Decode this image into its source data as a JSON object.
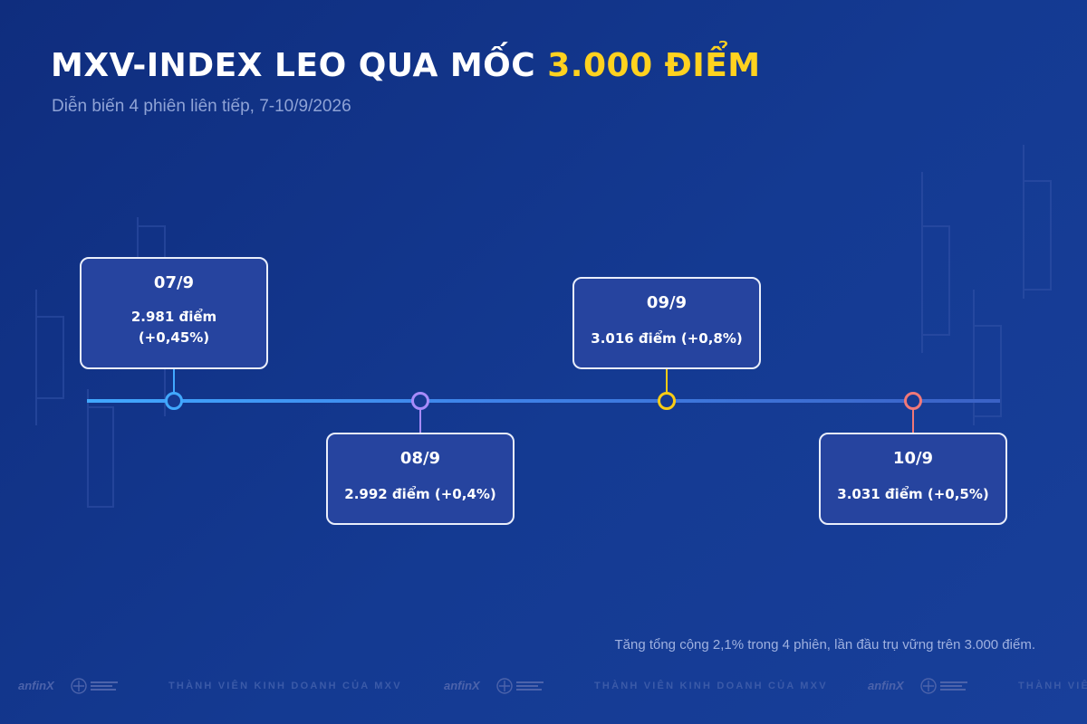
{
  "title": {
    "main": "MXV-INDEX LEO QUA MỐC",
    "highlight": "3.000 ĐIỂM"
  },
  "subtitle": "Diễn biến 4 phiên liên tiếp, 7-10/9/2026",
  "sessions": [
    {
      "date": "07/9",
      "line1": "2.981 điểm",
      "line2": "(+0,45%)",
      "marker_color": "#41a8ff"
    },
    {
      "date": "08/9",
      "line1": "2.992 điểm (+0,4%)",
      "marker_color": "#a78bfa"
    },
    {
      "date": "09/9",
      "line1": "3.016 điểm (+0,8%)",
      "marker_color": "#facc15"
    },
    {
      "date": "10/9",
      "line1": "3.031 điểm (+0,5%)",
      "marker_color": "#f07878"
    }
  ],
  "note": "Tăng tổng cộng 2,1% trong 4 phiên, lần đầu trụ vững trên 3.000 điểm.",
  "footer": {
    "brand": "anfinX",
    "member_text": "THÀNH VIÊN KINH DOANH CỦA MXV",
    "member_text_cut": "THÀNH VIÊN"
  },
  "colors": {
    "background": "#143a92",
    "accent": "#ffd21f",
    "card_fill": "#26449f",
    "card_border": "#e9eefb"
  }
}
